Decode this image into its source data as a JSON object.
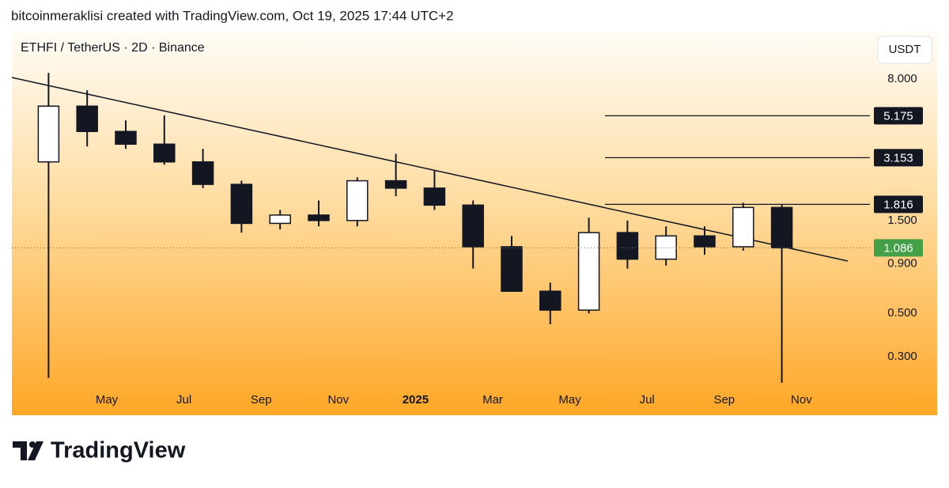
{
  "header": {
    "caption": "bitcoinmeraklisi created with TradingView.com, Oct 19, 2025 17:44 UTC+2"
  },
  "footer": {
    "brand": "TradingView"
  },
  "chart_data": {
    "type": "candlestick",
    "title": "ETHFI / TetherUS · 2D · Binance",
    "currency": "USDT",
    "log_scale": true,
    "color": "#131722",
    "x": [
      "2024-03",
      "2024-04",
      "2024-05",
      "2024-06",
      "2024-07",
      "2024-08",
      "2024-09",
      "2024-10",
      "2024-11",
      "2024-12",
      "2025-01",
      "2025-02",
      "2025-03",
      "2025-04",
      "2025-05",
      "2025-06",
      "2025-07",
      "2025-08",
      "2025-09",
      "2025-10"
    ],
    "open": [
      3.0,
      5.8,
      4.3,
      3.7,
      3.0,
      2.3,
      1.45,
      1.6,
      1.5,
      2.4,
      2.2,
      1.8,
      1.1,
      0.65,
      0.52,
      1.3,
      0.95,
      1.25,
      1.1,
      1.75
    ],
    "high": [
      8.6,
      7.0,
      4.9,
      5.2,
      3.5,
      2.4,
      1.7,
      1.9,
      2.5,
      3.3,
      2.7,
      1.9,
      1.25,
      0.72,
      1.55,
      1.5,
      1.4,
      1.4,
      1.85,
      1.82
    ],
    "low": [
      0.233,
      3.6,
      3.5,
      2.9,
      2.2,
      1.3,
      1.35,
      1.4,
      1.4,
      2.0,
      1.7,
      0.85,
      0.7,
      0.44,
      0.5,
      0.85,
      0.88,
      1.0,
      1.05,
      0.22
    ],
    "close": [
      5.8,
      4.3,
      3.7,
      3.0,
      2.3,
      1.45,
      1.6,
      1.5,
      2.4,
      2.2,
      1.8,
      1.1,
      0.65,
      0.52,
      1.3,
      0.95,
      1.25,
      1.1,
      1.75,
      1.086
    ],
    "levels": [
      5.175,
      3.153,
      1.816
    ],
    "last_price": 1.086,
    "last_color": "#43a047",
    "ylim": [
      0.214,
      14
    ],
    "yticks": [
      {
        "value": 8,
        "label": "8.000"
      },
      {
        "value": 1.5,
        "label": "1.500"
      },
      {
        "value": 0.9,
        "label": "0.900"
      },
      {
        "value": 0.5,
        "label": "0.500"
      },
      {
        "value": 0.3,
        "label": "0.300"
      }
    ],
    "xticks": [
      {
        "value": "2024-05",
        "label": "May"
      },
      {
        "value": "2024-07",
        "label": "Jul"
      },
      {
        "value": "2024-09",
        "label": "Sep"
      },
      {
        "value": "2024-11",
        "label": "Nov"
      },
      {
        "value": "2025-01",
        "label": "2025"
      },
      {
        "value": "2025-03",
        "label": "Mar"
      },
      {
        "value": "2025-05",
        "label": "May"
      },
      {
        "value": "2025-07",
        "label": "Jul"
      },
      {
        "value": "2025-09",
        "label": "Sep"
      },
      {
        "value": "2025-11",
        "label": "Nov"
      }
    ]
  }
}
